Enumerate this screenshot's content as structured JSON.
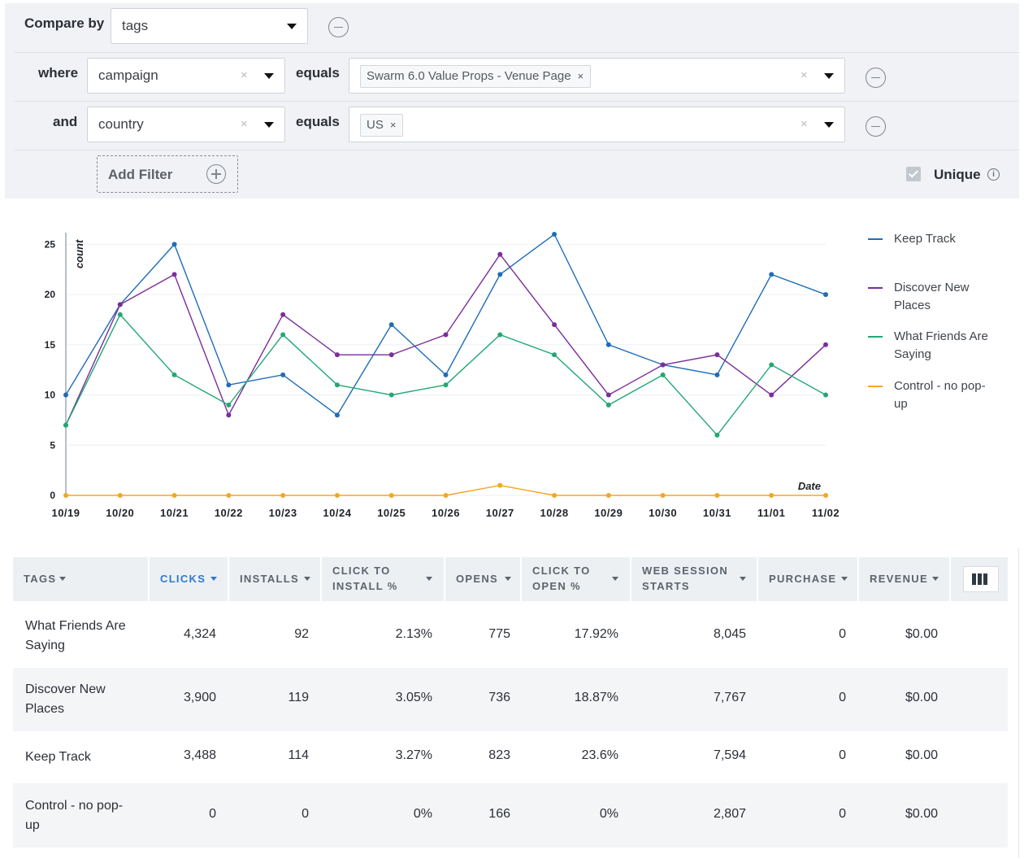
{
  "filters": {
    "compare_by_label": "Compare by",
    "compare_by_value": "tags",
    "where_label": "where",
    "where_field": "campaign",
    "where_op": "equals",
    "where_values": [
      "Swarm 6.0 Value Props - Venue Page"
    ],
    "and_label": "and",
    "and_field": "country",
    "and_op": "equals",
    "and_values": [
      "US"
    ],
    "add_filter_label": "Add Filter",
    "unique_label": "Unique",
    "unique_checked": true,
    "clear_glyph": "×",
    "info_glyph": "i"
  },
  "chart_data": {
    "type": "line",
    "xlabel": "Date",
    "ylabel": "count",
    "ylim": [
      0,
      26
    ],
    "yticks": [
      0,
      5,
      10,
      15,
      20,
      25
    ],
    "grid": true,
    "legend_position": "right",
    "categories": [
      "10/19",
      "10/20",
      "10/21",
      "10/22",
      "10/23",
      "10/24",
      "10/25",
      "10/26",
      "10/27",
      "10/28",
      "10/29",
      "10/30",
      "10/31",
      "11/01",
      "11/02"
    ],
    "series": [
      {
        "name": "Keep Track",
        "color": "#1f6db8",
        "values": [
          10,
          19,
          25,
          11,
          12,
          8,
          17,
          12,
          22,
          26,
          15,
          13,
          12,
          22,
          20
        ]
      },
      {
        "name": "Discover New Places",
        "color": "#7b2d9a",
        "values": [
          7,
          19,
          22,
          8,
          18,
          14,
          14,
          16,
          24,
          17,
          10,
          13,
          14,
          10,
          15
        ]
      },
      {
        "name": "What Friends Are Saying",
        "color": "#22a874",
        "values": [
          7,
          18,
          12,
          9,
          16,
          11,
          10,
          11,
          16,
          14,
          9,
          12,
          6,
          13,
          10
        ]
      },
      {
        "name": "Control - no pop-up",
        "color": "#f5a623",
        "values": [
          0,
          0,
          0,
          0,
          0,
          0,
          0,
          0,
          1,
          0,
          0,
          0,
          0,
          0,
          0
        ]
      }
    ]
  },
  "legend": [
    {
      "lines": [
        "Keep Track"
      ],
      "color": "#1f6db8"
    },
    {
      "lines": [
        "Discover New",
        "Places"
      ],
      "color": "#7b2d9a"
    },
    {
      "lines": [
        "What Friends Are",
        "Saying"
      ],
      "color": "#22a874"
    },
    {
      "lines": [
        "Control - no pop-",
        "up"
      ],
      "color": "#f5a623"
    }
  ],
  "table": {
    "columns": [
      {
        "label": [
          "TAGS"
        ],
        "active": false
      },
      {
        "label": [
          "CLICKS"
        ],
        "active": true
      },
      {
        "label": [
          "INSTALLS"
        ],
        "active": false
      },
      {
        "label": [
          "CLICK TO",
          "INSTALL %"
        ],
        "active": false
      },
      {
        "label": [
          "OPENS"
        ],
        "active": false
      },
      {
        "label": [
          "CLICK TO",
          "OPEN %"
        ],
        "active": false
      },
      {
        "label": [
          "WEB SESSION",
          "STARTS"
        ],
        "active": false
      },
      {
        "label": [
          "PURCHASE"
        ],
        "active": false
      },
      {
        "label": [
          "REVENUE"
        ],
        "active": false
      }
    ],
    "rows": [
      {
        "name": [
          "What Friends Are",
          "Saying"
        ],
        "cells": [
          "4,324",
          "92",
          "2.13%",
          "775",
          "17.92%",
          "8,045",
          "0",
          "$0.00"
        ]
      },
      {
        "name": [
          "Discover New",
          "Places"
        ],
        "cells": [
          "3,900",
          "119",
          "3.05%",
          "736",
          "18.87%",
          "7,767",
          "0",
          "$0.00"
        ]
      },
      {
        "name": [
          "Keep Track"
        ],
        "cells": [
          "3,488",
          "114",
          "3.27%",
          "823",
          "23.6%",
          "7,594",
          "0",
          "$0.00"
        ]
      },
      {
        "name": [
          "Control - no pop-",
          "up"
        ],
        "cells": [
          "0",
          "0",
          "0%",
          "166",
          "0%",
          "2,807",
          "0",
          "$0.00"
        ]
      }
    ]
  }
}
